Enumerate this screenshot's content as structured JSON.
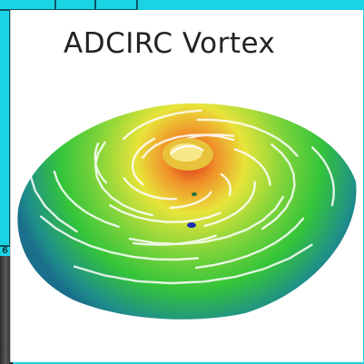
{
  "slide": {
    "title": "ADCIRC Vortex"
  },
  "background": {
    "cell_label": "6"
  },
  "colors": {
    "background_cyan": "#1bd4e3",
    "grid_lines": "#0b5560",
    "vortex_outer_teal": "#1f8f8a",
    "vortex_green": "#34c43a",
    "vortex_yellow": "#e8e43a",
    "vortex_orange": "#f0902a",
    "vortex_red": "#d82418",
    "marker_blue": "#1a2fb0"
  },
  "image": {
    "subject": "vortex-visualization"
  }
}
